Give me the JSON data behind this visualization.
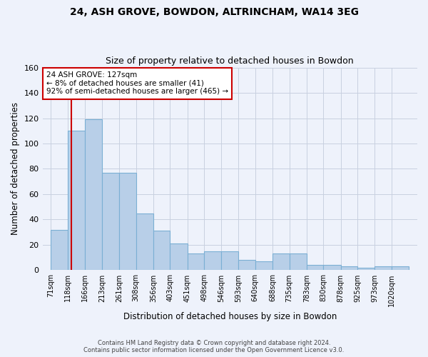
{
  "title1": "24, ASH GROVE, BOWDON, ALTRINCHAM, WA14 3EG",
  "title2": "Size of property relative to detached houses in Bowdon",
  "xlabel": "Distribution of detached houses by size in Bowdon",
  "ylabel": "Number of detached properties",
  "categories": [
    "71sqm",
    "118sqm",
    "166sqm",
    "213sqm",
    "261sqm",
    "308sqm",
    "356sqm",
    "403sqm",
    "451sqm",
    "498sqm",
    "546sqm",
    "593sqm",
    "640sqm",
    "688sqm",
    "735sqm",
    "783sqm",
    "830sqm",
    "878sqm",
    "925sqm",
    "973sqm",
    "1020sqm"
  ],
  "values": [
    32,
    110,
    119,
    77,
    77,
    45,
    31,
    21,
    13,
    15,
    15,
    8,
    7,
    13,
    13,
    4,
    4,
    3,
    2,
    3,
    3
  ],
  "bar_color": "#b8cfe8",
  "bar_edgecolor": "#7bafd4",
  "marker_line_color": "#cc0000",
  "annotation_text1": "24 ASH GROVE: 127sqm",
  "annotation_text2": "← 8% of detached houses are smaller (41)",
  "annotation_text3": "92% of semi-detached houses are larger (465) →",
  "annotation_box_facecolor": "#ffffff",
  "annotation_box_edgecolor": "#cc0000",
  "footer1": "Contains HM Land Registry data © Crown copyright and database right 2024.",
  "footer2": "Contains public sector information licensed under the Open Government Licence v3.0.",
  "ylim": [
    0,
    160
  ],
  "yticks": [
    0,
    20,
    40,
    60,
    80,
    100,
    120,
    140,
    160
  ],
  "background_color": "#eef2fb",
  "grid_color": "#c8d0e0",
  "marker_sqm": 127,
  "bin_edges": [
    71,
    118,
    166,
    213,
    261,
    308,
    356,
    403,
    451,
    498,
    546,
    593,
    640,
    688,
    735,
    783,
    830,
    878,
    925,
    973,
    1020,
    1068
  ]
}
